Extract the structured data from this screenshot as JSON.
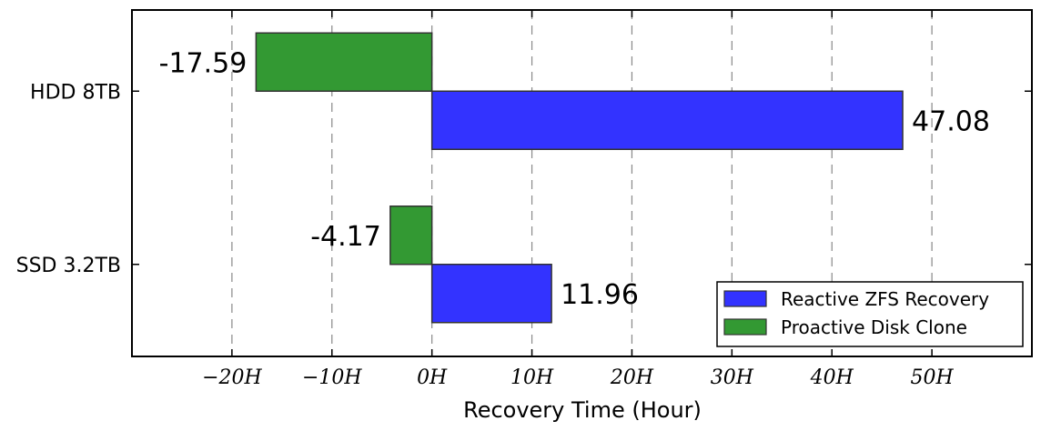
{
  "chart_data": {
    "type": "bar",
    "orientation": "horizontal",
    "categories": [
      "HDD 8TB",
      "SSD 3.2TB"
    ],
    "series": [
      {
        "name": "Reactive ZFS Recovery",
        "values": [
          47.08,
          11.96
        ],
        "color": "#3333ff"
      },
      {
        "name": "Proactive Disk Clone",
        "values": [
          -17.59,
          -4.17
        ],
        "color": "#339933"
      }
    ],
    "value_labels": {
      "Reactive ZFS Recovery": [
        "47.08",
        "11.96"
      ],
      "Proactive Disk Clone": [
        "-17.59",
        "-4.17"
      ]
    },
    "xlabel": "Recovery Time (Hour)",
    "ylabel": "",
    "xlim": [
      -30,
      60
    ],
    "xticks": [
      -20,
      -10,
      0,
      10,
      20,
      30,
      40,
      50
    ],
    "xtick_labels": [
      "−20H",
      "−10H",
      "0H",
      "10H",
      "20H",
      "30H",
      "40H",
      "50H"
    ],
    "grid": "x-dashed",
    "legend_position": "bottom-right"
  }
}
